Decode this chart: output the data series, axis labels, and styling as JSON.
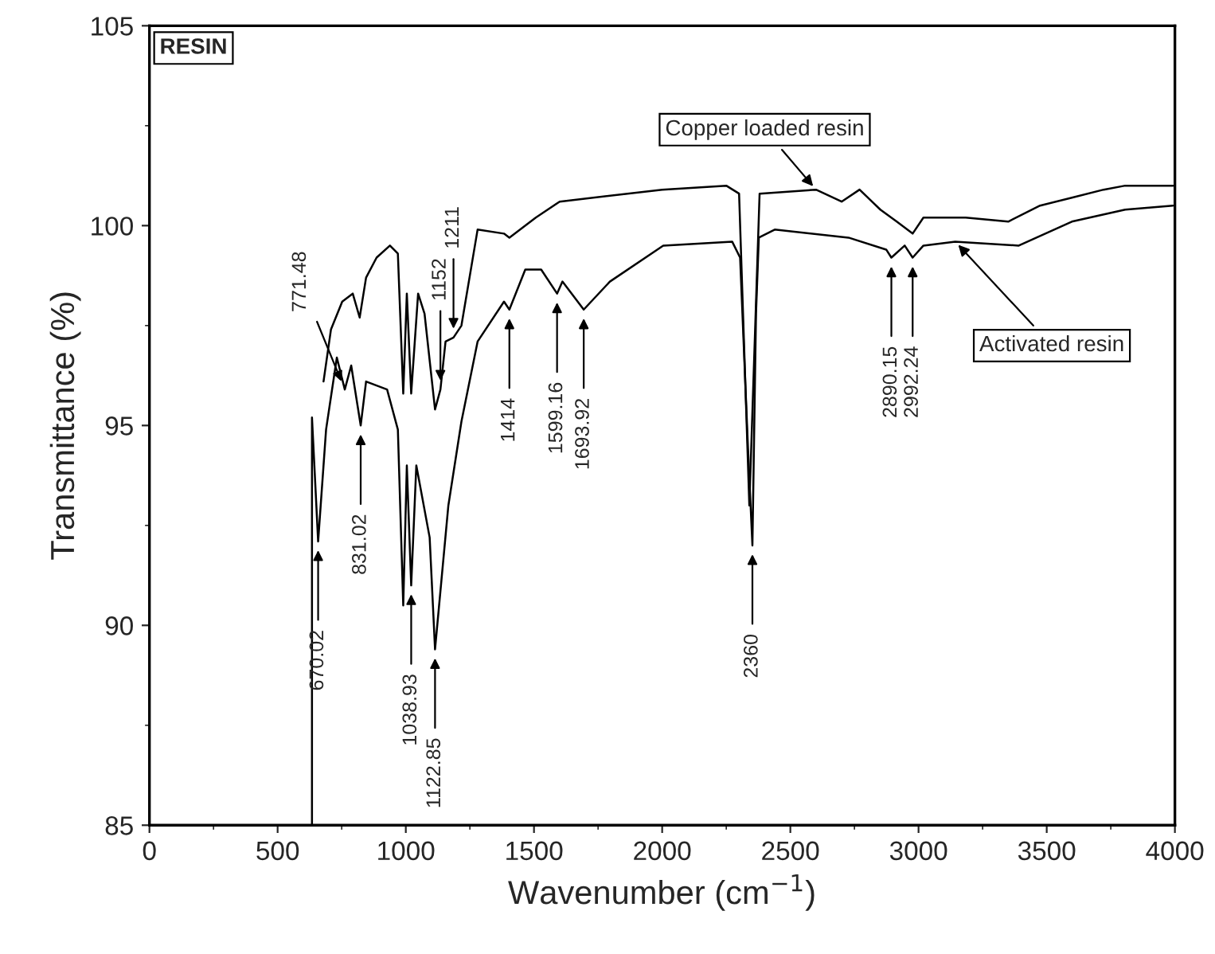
{
  "chart_data": {
    "type": "line",
    "xlabel": "Wavenumber (cm$^{−1}$)",
    "ylabel": "Transmittance (%)",
    "xlim": [
      0,
      4000
    ],
    "xticks": [
      0,
      500,
      1000,
      1500,
      2000,
      2500,
      3000,
      3500,
      4000
    ],
    "ylim": [
      85,
      105
    ],
    "yticks": [
      85,
      90,
      95,
      100,
      105
    ],
    "grid": false,
    "series": [
      {
        "name": "Copper loaded resin",
        "color": "#000000",
        "x": [
          679,
          708,
          752,
          793,
          820,
          845,
          886,
          938,
          969,
          990,
          1004,
          1021,
          1048,
          1073,
          1114,
          1135,
          1155,
          1186,
          1217,
          1280,
          1383,
          1404,
          1507,
          1600,
          2000,
          2250,
          2300,
          2340,
          2380,
          2600,
          2700,
          2770,
          2851,
          2915,
          2977,
          3019,
          3184,
          3350,
          3474,
          3598,
          3722,
          3806,
          3992
        ],
        "values": [
          96.1,
          97.4,
          98.1,
          98.3,
          97.7,
          98.7,
          99.2,
          99.5,
          99.3,
          95.8,
          98.3,
          95.8,
          98.3,
          97.8,
          95.4,
          95.9,
          97.1,
          97.2,
          97.5,
          99.9,
          99.8,
          99.7,
          100.2,
          100.6,
          100.9,
          101.0,
          100.8,
          93.0,
          100.8,
          100.9,
          100.6,
          100.9,
          100.4,
          100.1,
          99.8,
          100.2,
          100.2,
          100.1,
          100.5,
          100.7,
          100.9,
          101.0,
          101.0
        ]
      },
      {
        "name": "Activated resin",
        "color": "#000000",
        "x": [
          634,
          634,
          658,
          689,
          731,
          762,
          787,
          824,
          845,
          927,
          969,
          990,
          1004,
          1021,
          1041,
          1093,
          1114,
          1166,
          1217,
          1280,
          1383,
          1404,
          1466,
          1528,
          1590,
          1611,
          1694,
          1796,
          2004,
          2273,
          2304,
          2335,
          2352,
          2366,
          2377,
          2439,
          2727,
          2874,
          2894,
          2946,
          2977,
          3019,
          3143,
          3391,
          3598,
          3806,
          3992
        ],
        "values": [
          85.0,
          95.2,
          92.1,
          94.9,
          96.7,
          95.9,
          96.5,
          95.0,
          96.1,
          95.9,
          94.9,
          90.5,
          94.0,
          91.0,
          94.0,
          92.2,
          89.4,
          93.0,
          95.1,
          97.1,
          98.1,
          97.9,
          98.9,
          98.9,
          98.3,
          98.6,
          97.9,
          98.6,
          99.5,
          99.6,
          99.2,
          94.4,
          92.0,
          97.8,
          99.7,
          99.9,
          99.7,
          99.4,
          99.2,
          99.5,
          99.2,
          99.5,
          99.6,
          99.5,
          100.1,
          100.4,
          100.5
        ]
      }
    ],
    "annotations": [
      "RESIN",
      {
        "text": "771.48",
        "x": 762,
        "y": 95.9
      },
      {
        "text": "670.02",
        "x": 658,
        "y": 92.1
      },
      {
        "text": "831.02",
        "x": 824,
        "y": 95.0
      },
      {
        "text": "1038.93",
        "x": 1021,
        "y": 91.0
      },
      {
        "text": "1122.85",
        "x": 1114,
        "y": 89.4
      },
      {
        "text": "1152",
        "x": 1135,
        "y": 95.9
      },
      {
        "text": "1211",
        "x": 1186,
        "y": 97.2
      },
      {
        "text": "1414",
        "x": 1404,
        "y": 97.9
      },
      {
        "text": "1599.16",
        "x": 1590,
        "y": 98.3
      },
      {
        "text": "1693.92",
        "x": 1694,
        "y": 97.9
      },
      {
        "text": "2360",
        "x": 2352,
        "y": 92.0
      },
      {
        "text": "2890.15",
        "x": 2894,
        "y": 99.2
      },
      {
        "text": "2992.24",
        "x": 2977,
        "y": 99.2
      }
    ]
  }
}
